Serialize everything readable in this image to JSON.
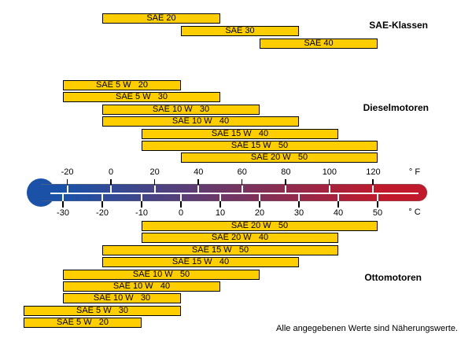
{
  "chart_data": {
    "type": "bar",
    "subtype": "horizontal-temperature-range-bars",
    "description_axis": "shared dual temperature axis drawn as a thermometer",
    "fahrenheit_axis": {
      "unit": "° F",
      "ticks": [
        -20,
        0,
        20,
        40,
        60,
        80,
        100,
        120
      ],
      "position": "top"
    },
    "celsius_axis": {
      "unit": "° C",
      "ticks": [
        -30,
        -20,
        -10,
        0,
        10,
        20,
        30,
        40,
        50
      ],
      "position": "bottom"
    },
    "celsius_range_of_bars": [
      -40,
      50
    ],
    "sections": [
      {
        "label": "SAE-Klassen",
        "bars": [
          {
            "label": "SAE 20",
            "from_c": -20,
            "to_c": 10
          },
          {
            "label": "SAE 30",
            "from_c": 0,
            "to_c": 30
          },
          {
            "label": "SAE 40",
            "from_c": 20,
            "to_c": 50
          }
        ]
      },
      {
        "label": "Dieselmotoren",
        "bars": [
          {
            "label": "SAE 5 W   20",
            "from_c": -30,
            "to_c": 0
          },
          {
            "label": "SAE 5 W   30",
            "from_c": -30,
            "to_c": 10
          },
          {
            "label": "SAE 10 W   30",
            "from_c": -20,
            "to_c": 20
          },
          {
            "label": "SAE 10 W   40",
            "from_c": -20,
            "to_c": 30
          },
          {
            "label": "SAE 15 W   40",
            "from_c": -10,
            "to_c": 40
          },
          {
            "label": "SAE 15 W   50",
            "from_c": -10,
            "to_c": 50
          },
          {
            "label": "SAE 20 W   50",
            "from_c": 0,
            "to_c": 50
          }
        ]
      },
      {
        "label": "Ottomotoren",
        "bars": [
          {
            "label": "SAE 20 W   50",
            "from_c": -10,
            "to_c": 50
          },
          {
            "label": "SAE 20 W   40",
            "from_c": -10,
            "to_c": 40
          },
          {
            "label": "SAE 15 W   50",
            "from_c": -20,
            "to_c": 40
          },
          {
            "label": "SAE 15 W   40",
            "from_c": -20,
            "to_c": 30
          },
          {
            "label": "SAE 10 W   50",
            "from_c": -30,
            "to_c": 20
          },
          {
            "label": "SAE 10 W   40",
            "from_c": -30,
            "to_c": 10
          },
          {
            "label": "SAE 10 W   30",
            "from_c": -30,
            "to_c": 0
          },
          {
            "label": "SAE 5 W   30",
            "from_c": -40,
            "to_c": 0
          },
          {
            "label": "SAE 5 W   20",
            "from_c": -40,
            "to_c": -10
          }
        ]
      }
    ]
  },
  "footnote": "Alle angegebenen Werte sind Näherungswerte.",
  "colors": {
    "bar_fill": "#FFCE00",
    "bar_border": "#000000",
    "thermo_cold": "#1B52A8",
    "thermo_mid": "#6F3765",
    "thermo_hot": "#C0192B",
    "mercury_line": "#FFFFFF"
  }
}
